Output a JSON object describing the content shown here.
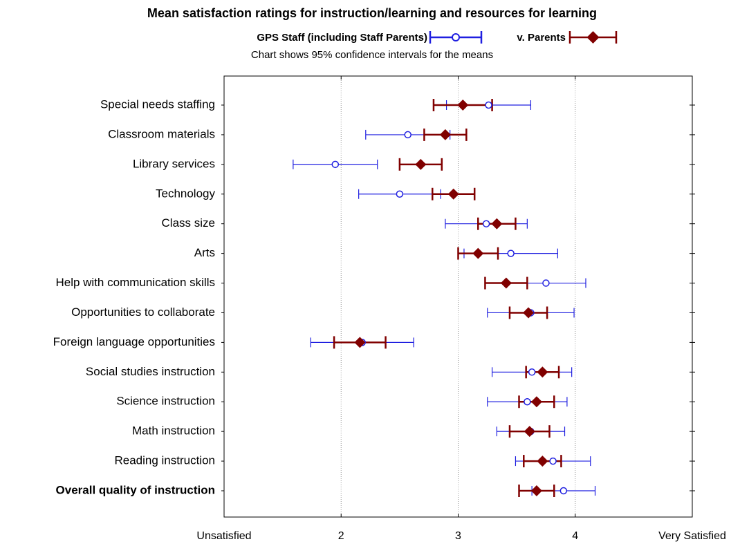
{
  "chart_data": {
    "type": "errorbar_dot",
    "title": "Mean satisfaction ratings for instruction/learning and resources for learning",
    "subtitle": "Chart shows 95% confidence intervals for the means",
    "categories": [
      "Special needs staffing",
      "Classroom materials",
      "Library services",
      "Technology",
      "Class size",
      "Arts",
      "Help with communication skills",
      "Opportunities to collaborate",
      "Foreign language opportunities",
      "Social studies instruction",
      "Science instruction",
      "Math instruction",
      "Reading instruction",
      "Overall quality of instruction"
    ],
    "bold_category": 13,
    "series": [
      {
        "name": "GPS Staff (including Staff Parents)",
        "color": "#1f1fe0",
        "marker": "circle",
        "values": [
          3.26,
          2.57,
          1.95,
          2.5,
          3.24,
          3.45,
          3.75,
          3.62,
          2.18,
          3.63,
          3.59,
          3.62,
          3.81,
          3.9
        ],
        "errors": [
          0.36,
          0.36,
          0.36,
          0.35,
          0.35,
          0.4,
          0.34,
          0.37,
          0.44,
          0.34,
          0.34,
          0.29,
          0.32,
          0.27
        ]
      },
      {
        "name": "v. Parents",
        "color": "#800000",
        "marker": "diamond",
        "values": [
          3.04,
          2.89,
          2.68,
          2.96,
          3.33,
          3.17,
          3.41,
          3.6,
          2.16,
          3.72,
          3.67,
          3.61,
          3.72,
          3.67
        ],
        "errors": [
          0.25,
          0.18,
          0.18,
          0.18,
          0.16,
          0.17,
          0.18,
          0.16,
          0.22,
          0.14,
          0.15,
          0.17,
          0.16,
          0.15
        ]
      }
    ],
    "xlim": [
      1,
      5
    ],
    "xticks": [
      {
        "value": 1,
        "label": "Unsatisfied"
      },
      2,
      3,
      4,
      {
        "value": 5,
        "label": "Very Satisfied"
      }
    ],
    "grid": true
  }
}
